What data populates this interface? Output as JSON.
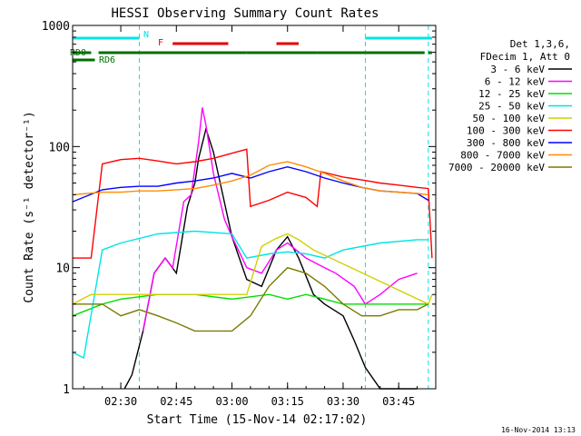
{
  "chart_data": {
    "type": "line",
    "title": "HESSI Observing Summary Count Rates",
    "xlabel": "Start Time (15-Nov-14 02:17:02)",
    "ylabel": "Count Rate (s⁻¹ detector⁻¹)",
    "y_scale": "log",
    "ylim": [
      1,
      1000
    ],
    "xlim": [
      "02:17",
      "03:55"
    ],
    "x_ticks": [
      "02:30",
      "02:45",
      "03:00",
      "03:15",
      "03:30",
      "03:45"
    ],
    "y_ticks": [
      "1",
      "10",
      "100",
      "1000"
    ],
    "grid": false,
    "legend_position": "top-right, outside plot",
    "legend_header": [
      "Det 1,3,6,",
      "FDecim 1, Att 0"
    ],
    "timestamp": "16-Nov-2014 13:13",
    "flags": [
      {
        "label": "N",
        "color": "#00e5e5",
        "segments": [
          [
            "02:17",
            "02:35"
          ],
          [
            "03:36",
            "03:54"
          ]
        ]
      },
      {
        "label": "F",
        "color": "#e00000",
        "segments": [
          [
            "02:44",
            "02:59"
          ],
          [
            "03:12",
            "03:18"
          ]
        ]
      },
      {
        "label": "RD0",
        "color": "#007000",
        "segments": [
          [
            "02:17",
            "02:22"
          ],
          [
            "02:24",
            "03:04"
          ],
          [
            "03:04",
            "03:23"
          ],
          [
            "03:23",
            "03:52"
          ],
          [
            "03:53",
            "03:54"
          ]
        ]
      },
      {
        "label": "RD6",
        "color": "#007000",
        "segments": [
          [
            "02:17",
            "02:23"
          ]
        ]
      }
    ],
    "saa_lines": [
      "02:35",
      "03:53"
    ],
    "night_lines": [
      "02:17",
      "03:36"
    ],
    "series": [
      {
        "name": "3 - 6 keV",
        "color": "#000000",
        "x": [
          "02:31",
          "02:33",
          "02:36",
          "02:39",
          "02:42",
          "02:45",
          "02:48",
          "02:50",
          "02:51",
          "02:53",
          "02:55",
          "03:00",
          "03:04",
          "03:08",
          "03:12",
          "03:15",
          "03:18",
          "03:22",
          "03:25",
          "03:30",
          "03:33",
          "03:36",
          "03:40",
          "03:45",
          "03:50"
        ],
        "y": [
          1,
          1.3,
          3,
          9,
          12,
          9,
          32,
          50,
          80,
          140,
          90,
          18,
          8,
          7,
          14,
          18,
          12,
          6,
          5,
          4,
          2.5,
          1.5,
          1,
          1,
          1
        ]
      },
      {
        "name": "6 - 12 keV",
        "color": "#ff00ff",
        "x": [
          "02:36",
          "02:39",
          "02:42",
          "02:44",
          "02:47",
          "02:49",
          "02:51",
          "02:52",
          "02:53",
          "02:55",
          "02:58",
          "03:00",
          "03:04",
          "03:08",
          "03:12",
          "03:15",
          "03:20",
          "03:25",
          "03:28",
          "03:33",
          "03:36",
          "03:40",
          "03:45",
          "03:50"
        ],
        "y": [
          3,
          9,
          12,
          10,
          35,
          40,
          110,
          210,
          150,
          60,
          25,
          18,
          10,
          9,
          14,
          16,
          12,
          10,
          9,
          7,
          5,
          6,
          8,
          9
        ]
      },
      {
        "name": "12 - 25 keV",
        "color": "#00dd00",
        "x": [
          "02:17",
          "02:25",
          "02:30",
          "02:40",
          "02:50",
          "03:00",
          "03:10",
          "03:15",
          "03:20",
          "03:25",
          "03:30",
          "03:40",
          "03:50",
          "03:53"
        ],
        "y": [
          4,
          5,
          5.5,
          6,
          6,
          5.5,
          6,
          5.5,
          6,
          5.5,
          5,
          5,
          5,
          5
        ]
      },
      {
        "name": "25 - 50 keV",
        "color": "#00e5e5",
        "x": [
          "02:17",
          "02:20",
          "02:25",
          "02:30",
          "02:40",
          "02:50",
          "03:00",
          "03:04",
          "03:10",
          "03:15",
          "03:20",
          "03:25",
          "03:30",
          "03:40",
          "03:50",
          "03:53"
        ],
        "y": [
          2,
          1.8,
          14,
          16,
          19,
          20,
          19,
          12,
          13,
          13.5,
          13,
          12,
          14,
          16,
          17,
          17
        ]
      },
      {
        "name": "50 - 100 keV",
        "color": "#d0d000",
        "x": [
          "02:17",
          "02:22",
          "02:25",
          "03:04",
          "03:08",
          "03:12",
          "03:15",
          "03:18",
          "03:22",
          "03:53",
          "03:54"
        ],
        "y": [
          5,
          6,
          6,
          6,
          15,
          17.5,
          19,
          17,
          14,
          5,
          6
        ]
      },
      {
        "name": "100 - 300 keV",
        "color": "#ff0000",
        "x": [
          "02:17",
          "02:22",
          "02:25",
          "02:30",
          "02:35",
          "02:40",
          "02:45",
          "02:50",
          "02:55",
          "03:00",
          "03:04",
          "03:05",
          "03:10",
          "03:15",
          "03:20",
          "03:23",
          "03:24",
          "03:30",
          "03:35",
          "03:40",
          "03:45",
          "03:50",
          "03:53",
          "03:54"
        ],
        "y": [
          12,
          12,
          72,
          78,
          80,
          76,
          72,
          75,
          80,
          88,
          95,
          32,
          36,
          42,
          38,
          32,
          62,
          56,
          53,
          50,
          48,
          46,
          45,
          12
        ]
      },
      {
        "name": "300 - 800 keV",
        "color": "#0000ff",
        "x": [
          "02:17",
          "02:25",
          "02:30",
          "02:35",
          "02:40",
          "02:45",
          "02:50",
          "02:55",
          "03:00",
          "03:05",
          "03:10",
          "03:15",
          "03:20",
          "03:25",
          "03:30",
          "03:35",
          "03:40",
          "03:45",
          "03:50",
          "03:53"
        ],
        "y": [
          35,
          44,
          46,
          47,
          47,
          50,
          52,
          55,
          60,
          55,
          62,
          68,
          62,
          55,
          50,
          46,
          43,
          42,
          41,
          36
        ]
      },
      {
        "name": "800 - 7000 keV",
        "color": "#ff8c00",
        "x": [
          "02:17",
          "02:25",
          "02:30",
          "02:35",
          "02:40",
          "02:45",
          "02:50",
          "02:55",
          "03:00",
          "03:05",
          "03:10",
          "03:15",
          "03:20",
          "03:25",
          "03:30",
          "03:35",
          "03:40",
          "03:45",
          "03:50",
          "03:53"
        ],
        "y": [
          40,
          42,
          42,
          43,
          43,
          44,
          45,
          48,
          52,
          58,
          70,
          75,
          68,
          60,
          52,
          46,
          43,
          42,
          41,
          40
        ]
      },
      {
        "name": "7000 - 20000 keV",
        "color": "#7a7a00",
        "x": [
          "02:17",
          "02:25",
          "02:30",
          "02:35",
          "02:40",
          "02:45",
          "02:50",
          "02:55",
          "03:00",
          "03:05",
          "03:10",
          "03:15",
          "03:20",
          "03:25",
          "03:30",
          "03:35",
          "03:40",
          "03:45",
          "03:50",
          "03:53"
        ],
        "y": [
          5,
          5,
          4,
          4.5,
          4,
          3.5,
          3,
          3,
          3,
          4,
          7,
          10,
          9,
          7,
          5,
          4,
          4,
          4.5,
          4.5,
          5
        ]
      }
    ]
  }
}
